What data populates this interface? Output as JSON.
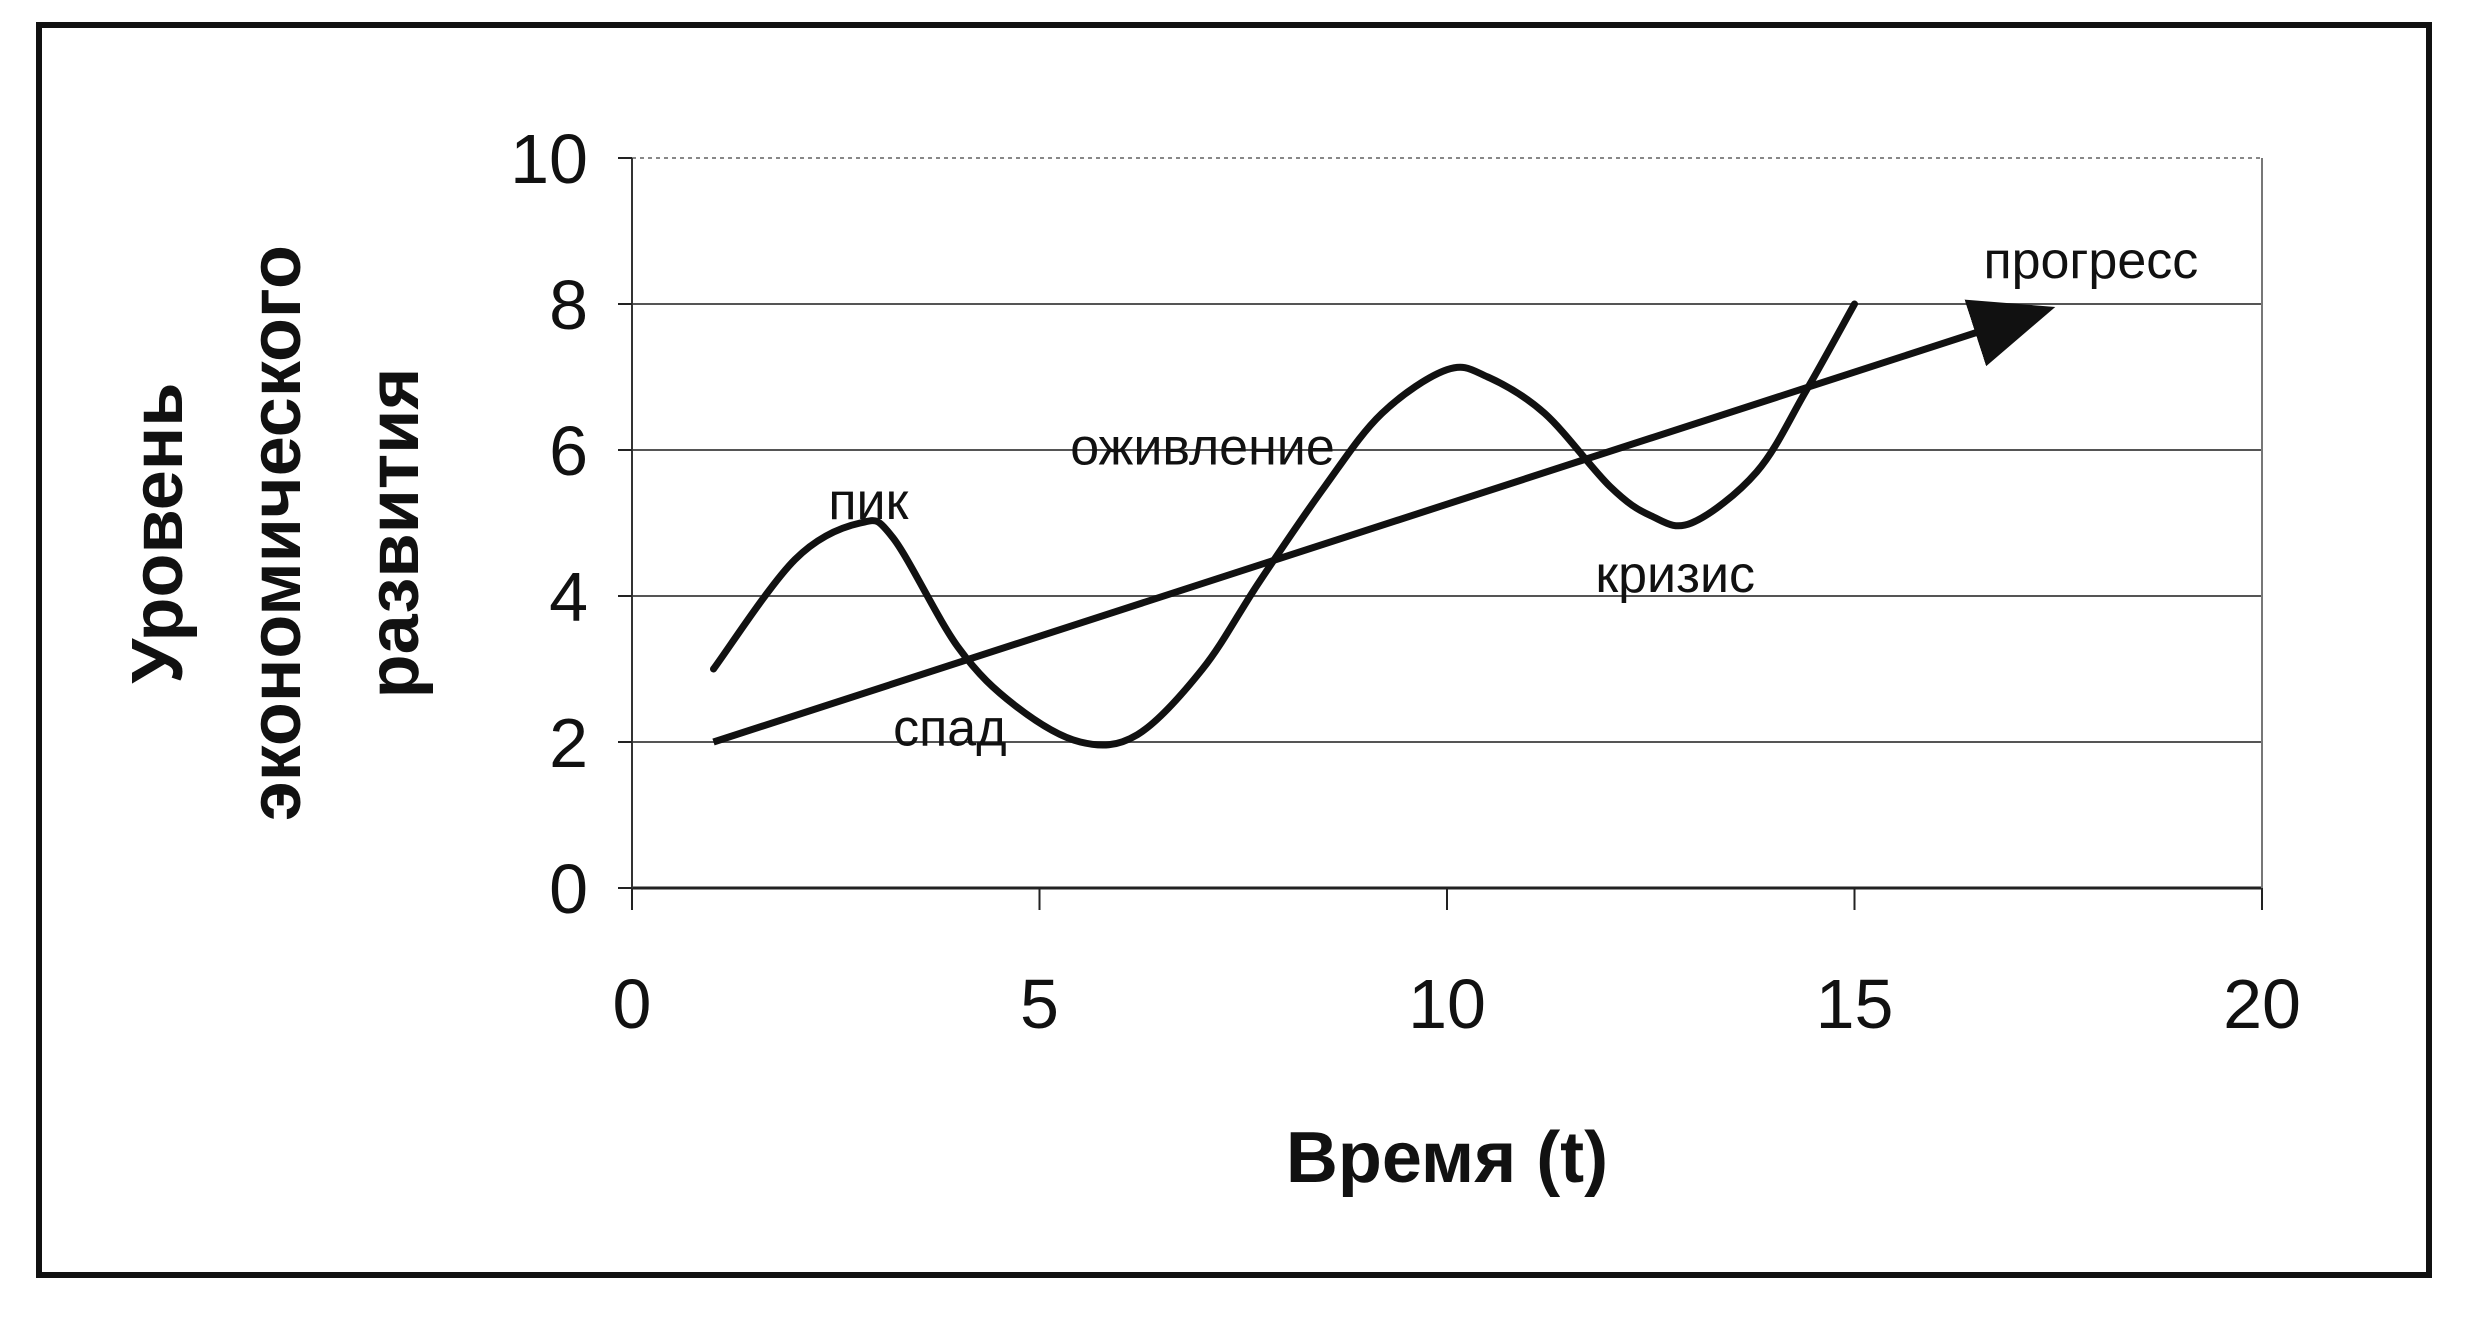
{
  "chart_data": {
    "type": "line",
    "xlabel": "Время (t)",
    "ylabel": [
      "Уровень",
      "экономического",
      "развития"
    ],
    "xlim": [
      0,
      20
    ],
    "ylim": [
      0,
      10
    ],
    "xticks": [
      0,
      5,
      10,
      15,
      20
    ],
    "yticks": [
      0,
      2,
      4,
      6,
      8,
      10
    ],
    "grid": "horizontal",
    "legend": "none",
    "series": [
      {
        "kind": "cycle-curve",
        "color": "#111111",
        "x": [
          1,
          2,
          2.8,
          3.2,
          4,
          4.7,
          5.5,
          6.2,
          7,
          7.7,
          8.5,
          9.2,
          10,
          10.5,
          11.2,
          12,
          12.5,
          13,
          13.8,
          14.4,
          15
        ],
        "y": [
          3,
          4.5,
          5,
          4.8,
          3.3,
          2.5,
          2,
          2.1,
          3,
          4.2,
          5.5,
          6.5,
          7.1,
          7,
          6.5,
          5.5,
          5.1,
          5,
          5.7,
          6.8,
          8
        ]
      },
      {
        "kind": "trend-arrow",
        "color": "#111111",
        "x": [
          1,
          17.3
        ],
        "y": [
          2,
          7.9
        ]
      }
    ],
    "annotations": [
      {
        "text": "пик",
        "x": 2.9,
        "y": 5.3
      },
      {
        "text": "спад",
        "x": 3.9,
        "y": 2.2
      },
      {
        "text": "оживление",
        "x": 7,
        "y": 6.05
      },
      {
        "text": "кризис",
        "x": 12.8,
        "y": 4.3
      },
      {
        "text": "прогресс",
        "x": 17.9,
        "y": 8.6
      }
    ]
  }
}
